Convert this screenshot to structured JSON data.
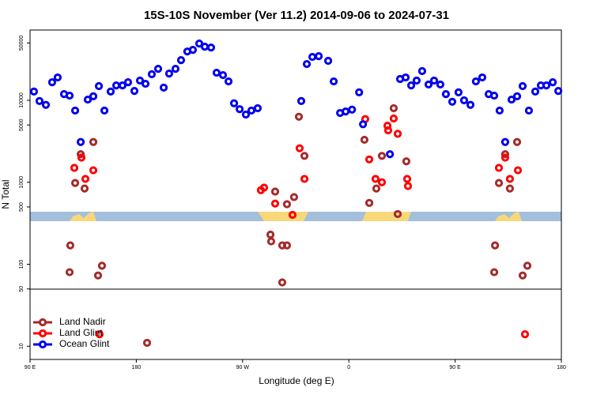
{
  "chart_data": {
    "type": "scatter",
    "title": "15S-10S November (Ver 11.2)   2014-09-06 to 2024-07-31",
    "xlabel": "Longitude (deg E)",
    "ylabel": "N Total",
    "log_y": true,
    "legend": "lower left",
    "xlim": [
      90,
      540
    ],
    "ylim": [
      6.9,
      72000
    ],
    "xticks": [
      {
        "value": 90,
        "label": "90 E"
      },
      {
        "value": 180,
        "label": "180"
      },
      {
        "value": 270,
        "label": "90 W"
      },
      {
        "value": 360,
        "label": "0"
      },
      {
        "value": 450,
        "label": "90 E"
      },
      {
        "value": 540,
        "label": "180"
      }
    ],
    "yticks": [
      10,
      50,
      100,
      500,
      1000,
      5000,
      10000,
      50000
    ],
    "series": [
      {
        "name": "Land Nadir",
        "color": "#a52a2a",
        "x": [
          124.1,
          123.5,
          128.2,
          132.9,
          136.2,
          143.6,
          147.6,
          150.9,
          189.1,
          293.6,
          294.2,
          297.6,
          303.6,
          303.6,
          307.6,
          307.6,
          313.6,
          317.7,
          322.4,
          373.2,
          377.3,
          383.3,
          388,
          398,
          401.4,
          408.7,
          483.8,
          483.1,
          487.1,
          492.4,
          496.4,
          502.5,
          507.2,
          511.2
        ],
        "values": [
          170,
          80,
          980,
          2200,
          840,
          3100,
          73,
          96,
          11,
          230,
          190,
          770,
          170,
          60,
          170,
          540,
          660,
          6300,
          2100,
          3300,
          560,
          840,
          2100,
          8000,
          410,
          1800,
          170,
          80,
          980,
          2200,
          840,
          3100,
          73,
          96
        ]
      },
      {
        "name": "Land Glint",
        "color": "#ff0000",
        "x": [
          127.5,
          133.5,
          136.9,
          143.6,
          148.9,
          285.5,
          288.2,
          297.6,
          312.3,
          318.3,
          322.4,
          373.9,
          377.3,
          382.6,
          388,
          392.7,
          393.3,
          398,
          401.4,
          409.4,
          410.1,
          487.1,
          492.4,
          496.4,
          503.2,
          509.2
        ],
        "values": [
          1500,
          2000,
          1100,
          1400,
          14,
          800,
          860,
          550,
          400,
          2600,
          1100,
          5900,
          1900,
          1100,
          1000,
          4900,
          4300,
          6000,
          3900,
          1100,
          900,
          1500,
          2000,
          1100,
          1400,
          14
        ]
      },
      {
        "name": "Ocean Glint",
        "color": "#0000ee",
        "x": [
          93.3,
          98,
          103.4,
          108.7,
          113.4,
          118.8,
          123.5,
          128.2,
          132.9,
          138.9,
          143.6,
          148.3,
          153,
          158.3,
          163,
          168.3,
          173,
          178.4,
          183.1,
          187.8,
          193.1,
          198.5,
          203.2,
          207.8,
          213.2,
          217.9,
          223.2,
          227.9,
          233.3,
          238,
          243.3,
          248,
          253.4,
          258.1,
          262.8,
          267.5,
          272.8,
          277.5,
          282.8,
          319.7,
          324.4,
          329.1,
          334.5,
          342.5,
          347.2,
          352.6,
          357.3,
          362.7,
          368.7,
          372,
          394.8,
          403.4,
          408.1,
          412.8,
          417.4,
          422.1,
          427.5,
          432.2,
          437.5,
          442.2,
          447.6,
          452.9,
          457.6,
          463,
          467.6,
          473,
          478.4,
          483.1,
          487.7,
          492.4,
          497.8,
          502.5,
          507.2,
          512.5,
          517.9,
          522.6,
          527.3,
          532.7,
          537.4
        ],
        "values": [
          12800,
          9800,
          8800,
          16600,
          19000,
          11900,
          11400,
          7500,
          3100,
          10200,
          11200,
          14900,
          7500,
          12800,
          15200,
          15200,
          16600,
          13000,
          17400,
          15900,
          20800,
          24200,
          14300,
          21200,
          24200,
          30900,
          39400,
          41200,
          49200,
          45100,
          44000,
          21700,
          20300,
          17000,
          9200,
          7800,
          6700,
          7500,
          8000,
          9800,
          27700,
          33800,
          34500,
          30300,
          17000,
          7000,
          7300,
          7700,
          12500,
          5100,
          2200,
          18200,
          19000,
          15200,
          17400,
          22700,
          15600,
          17400,
          15600,
          11900,
          9600,
          12500,
          10000,
          8800,
          17000,
          19000,
          11900,
          11400,
          7500,
          3100,
          10200,
          11200,
          14900,
          7500,
          12800,
          15200,
          15200,
          16600,
          13000
        ]
      }
    ]
  }
}
